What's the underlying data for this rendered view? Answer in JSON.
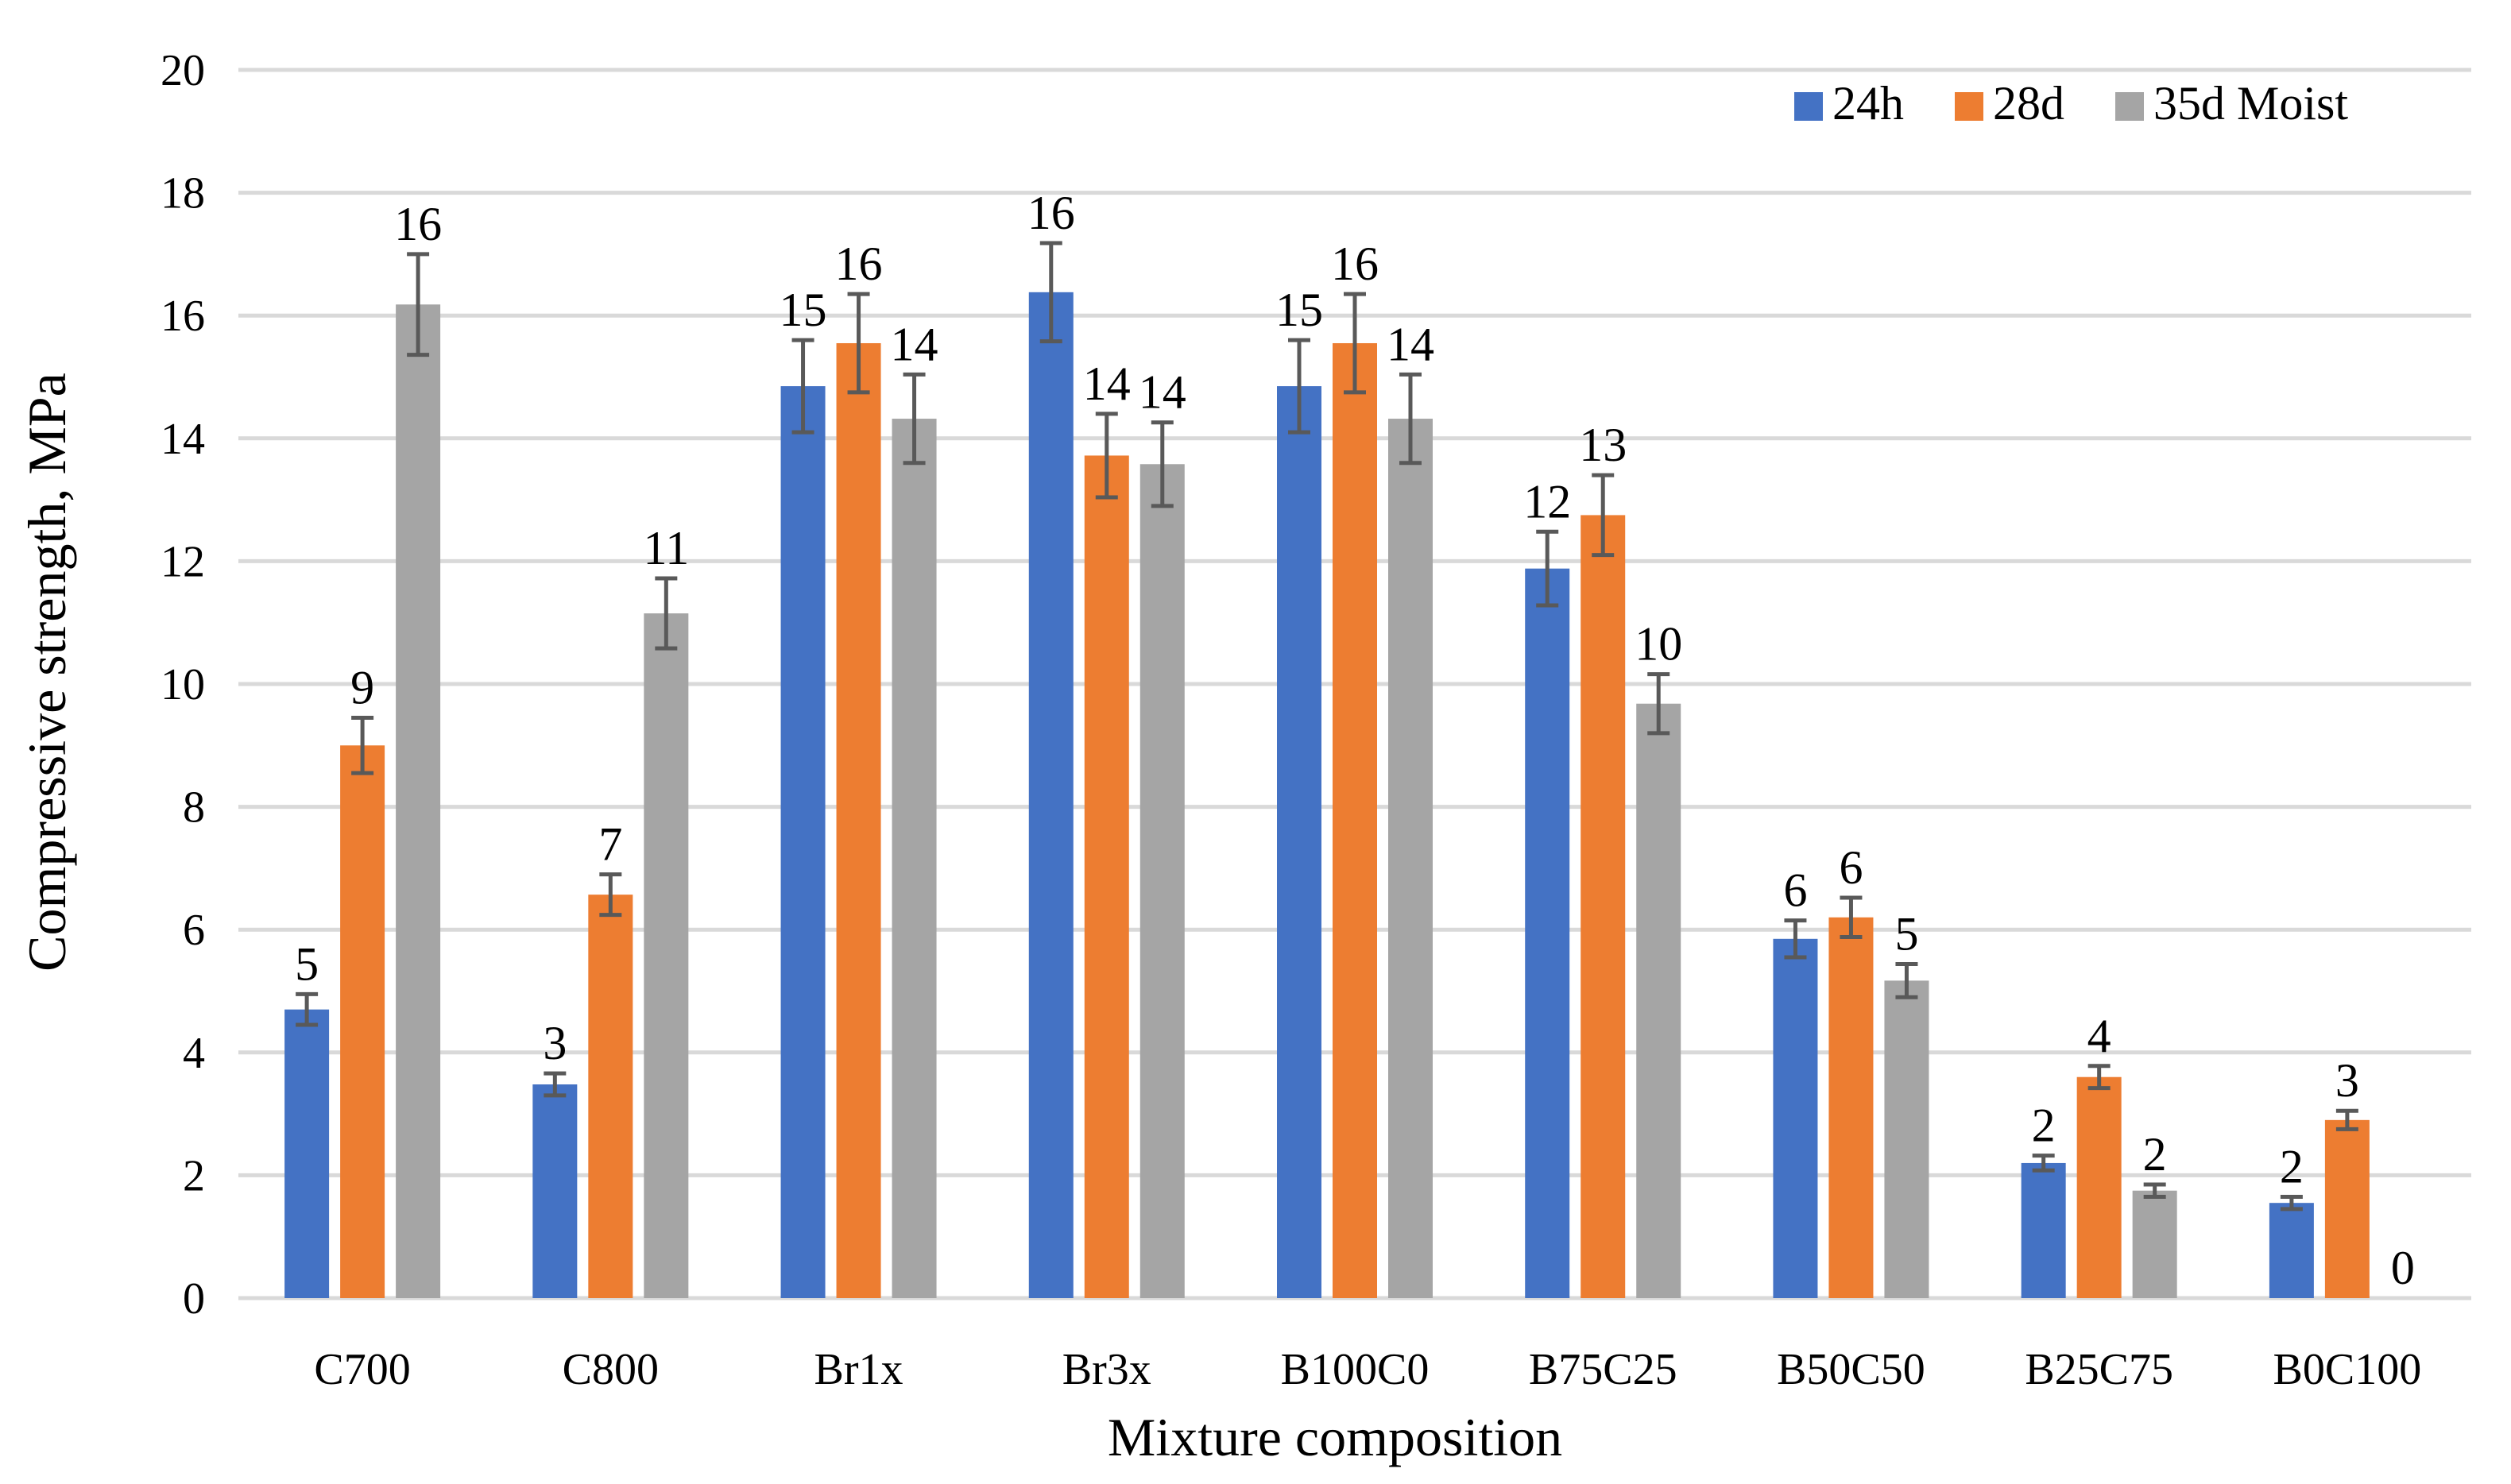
{
  "chart_data": {
    "type": "bar",
    "title": "",
    "xlabel": "Mixture composition",
    "ylabel": "Compressive strength, MPa",
    "ylim": [
      0,
      20
    ],
    "yticks": [
      0,
      2,
      4,
      6,
      8,
      10,
      12,
      14,
      16,
      18,
      20
    ],
    "grid": true,
    "legend_position": "top-right",
    "categories": [
      "C700",
      "C800",
      "Br1x",
      "Br3x",
      "B100C0",
      "B75C25",
      "B50C50",
      "B25C75",
      "B0C100"
    ],
    "series": [
      {
        "name": "24h",
        "color": "#4472C4",
        "values": [
          4.7,
          3.48,
          14.85,
          16.38,
          14.85,
          11.88,
          5.85,
          2.2,
          1.55
        ],
        "errors": [
          0.25,
          0.18,
          0.75,
          0.8,
          0.75,
          0.6,
          0.3,
          0.12,
          0.1
        ],
        "labels": [
          "5",
          "3",
          "15",
          "16",
          "15",
          "12",
          "6",
          "2",
          "2"
        ]
      },
      {
        "name": "28d",
        "color": "#ED7D31",
        "values": [
          9.0,
          6.57,
          15.55,
          13.72,
          15.55,
          12.75,
          6.2,
          3.6,
          2.9
        ],
        "errors": [
          0.45,
          0.33,
          0.8,
          0.68,
          0.8,
          0.65,
          0.32,
          0.18,
          0.15
        ],
        "labels": [
          "9",
          "7",
          "16",
          "14",
          "16",
          "13",
          "6",
          "4",
          "3"
        ]
      },
      {
        "name": "35d Moist",
        "color": "#A5A5A5",
        "values": [
          16.18,
          11.15,
          14.32,
          13.58,
          14.32,
          9.68,
          5.17,
          1.75,
          0
        ],
        "errors": [
          0.82,
          0.57,
          0.72,
          0.68,
          0.72,
          0.48,
          0.27,
          0.1,
          0
        ],
        "labels": [
          "16",
          "11",
          "14",
          "14",
          "14",
          "10",
          "5",
          "2",
          "0"
        ]
      }
    ]
  }
}
